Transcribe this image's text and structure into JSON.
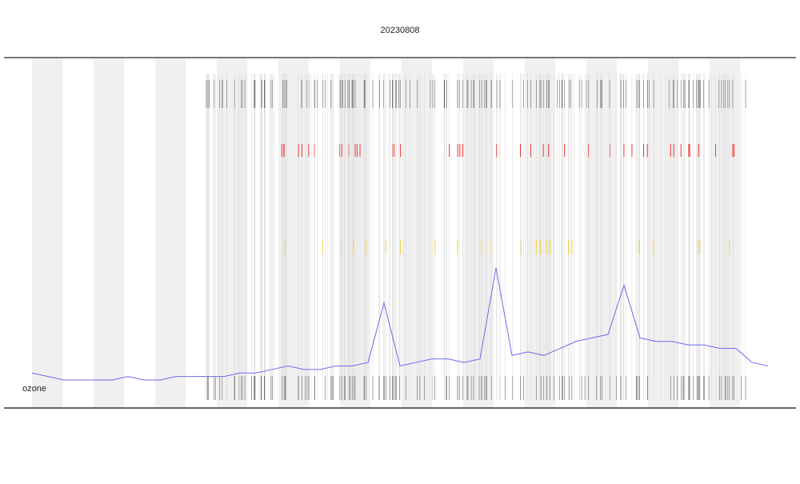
{
  "chart_data": {
    "type": "line",
    "title": "20230808",
    "annotation": "ozone",
    "x": [
      0,
      1,
      2,
      3,
      4,
      5,
      6,
      7,
      8,
      9,
      10,
      11,
      12,
      13,
      14,
      15,
      16,
      17,
      18,
      19,
      20,
      21,
      22,
      23,
      24,
      25,
      26,
      27,
      28,
      29,
      30,
      31,
      32,
      33,
      34,
      35,
      36,
      37,
      38,
      39,
      40,
      41,
      42,
      43,
      44,
      45,
      46
    ],
    "series": [
      {
        "color": "#6b6bef",
        "values": [
          10,
          9,
          8,
          8,
          8,
          8,
          9,
          8,
          8,
          9,
          9,
          9,
          9,
          10,
          10,
          11,
          12,
          11,
          11,
          12,
          12,
          13,
          30,
          12,
          13,
          14,
          14,
          13,
          14,
          40,
          15,
          16,
          15,
          17,
          19,
          20,
          21,
          35,
          20,
          19,
          19,
          18,
          18,
          17,
          17,
          13,
          12
        ]
      }
    ],
    "xlim": [
      -1.75,
      47.75
    ],
    "ylim": [
      0,
      100
    ]
  }
}
